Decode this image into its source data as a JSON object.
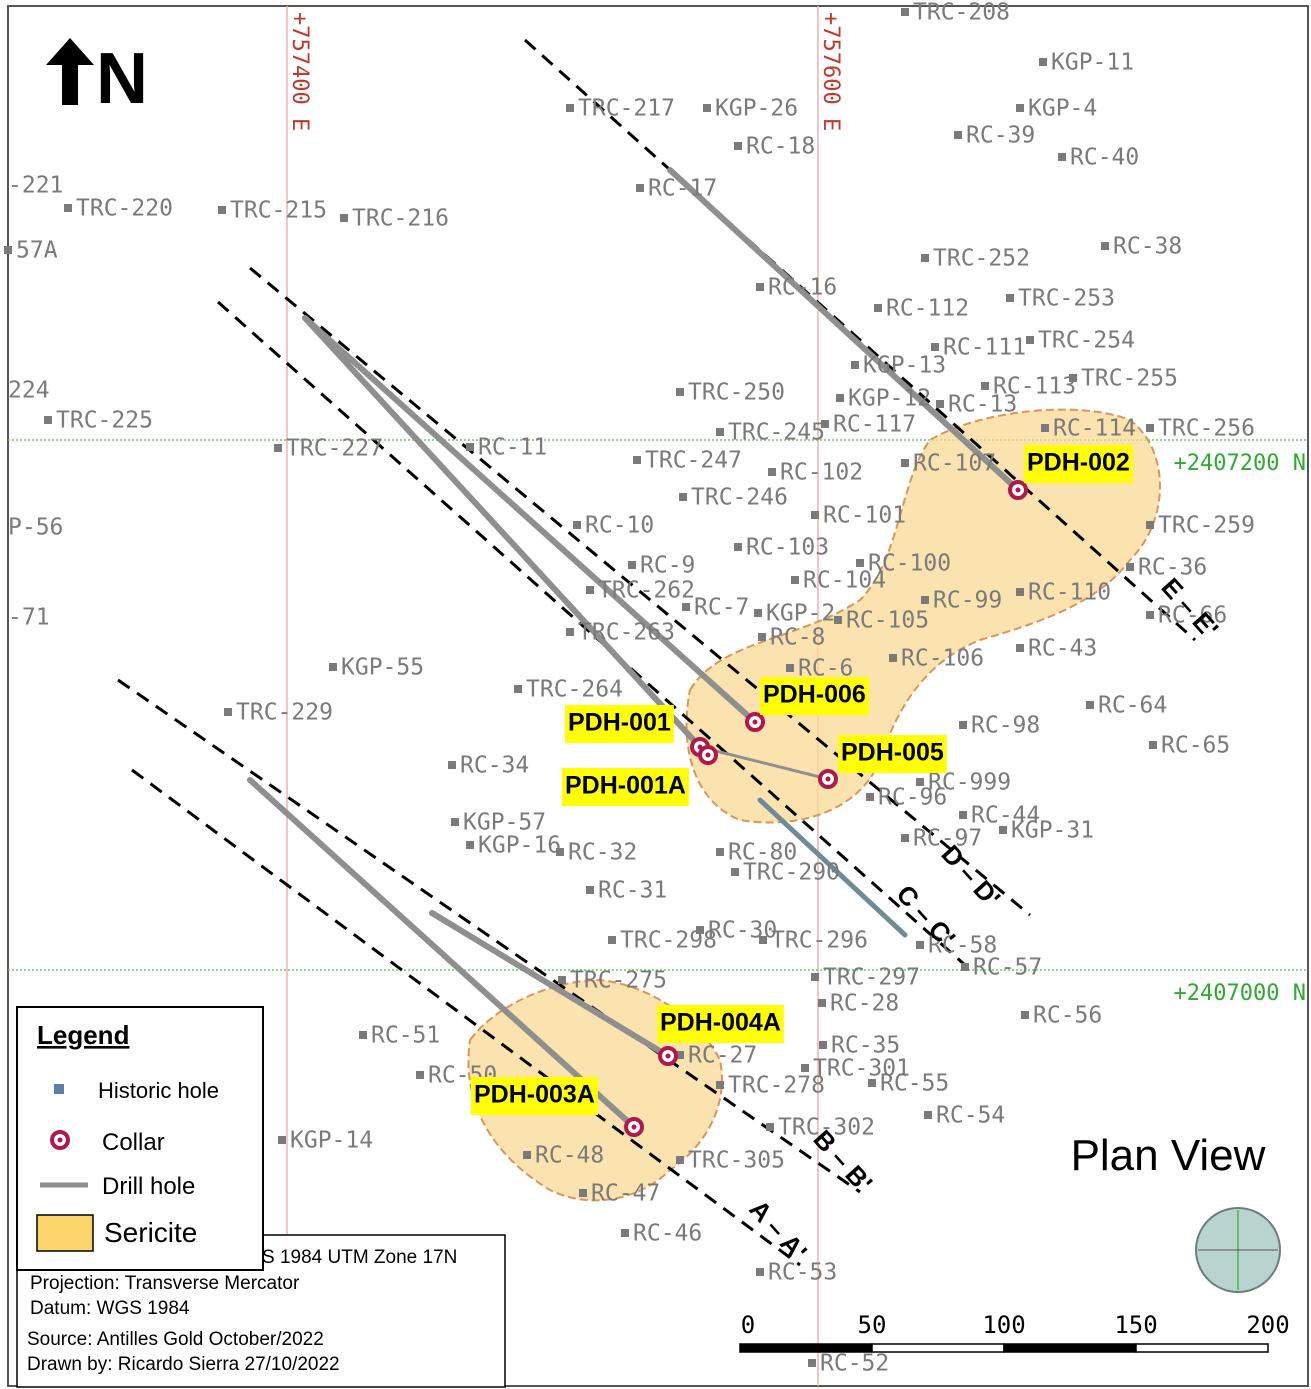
{
  "map": {
    "north_label": "N",
    "title": "Plan View",
    "grid_labels": [
      "+757400 E",
      "+757600 E",
      "+2407200 N",
      "+2407000 N"
    ],
    "drill_holes": [
      "PDH-002",
      "PDH-006",
      "PDH-001",
      "PDH-005",
      "PDH-001A",
      "PDH-004A",
      "PDH-003A"
    ],
    "sections": [
      "E – E'",
      "D – D'",
      "C – C'",
      "B – B'",
      "A – A'"
    ],
    "historic_holes": [
      "TRC-208",
      "KGP-11",
      "TRC-217",
      "KGP-26",
      "KGP-4",
      "RC-18",
      "RC-39",
      "RC-40",
      "RC-17",
      "-221",
      "TRC-220",
      "TRC-215",
      "TRC-216",
      "57A",
      "TRC-252",
      "RC-38",
      "RC-16",
      "RC-112",
      "TRC-253",
      "TRC-254",
      "RC-111",
      "KGP-13",
      "TRC-255",
      "RC-113",
      "224",
      "TRC-225",
      "TRC-227",
      "RC-11",
      "TRC-250",
      "KGP-12",
      "TRC-245",
      "RC-117",
      "RC-13",
      "RC-114",
      "TRC-256",
      "TRC-247",
      "RC-102",
      "RC-107",
      "TRC-246",
      "RC-101",
      "RC-10",
      "P-56",
      "TRC-259",
      "RC-103",
      "RC-100",
      "RC-9",
      "TRC-262",
      "RC-104",
      "RC-99",
      "RC-110",
      "RC-36",
      "RC-7",
      "KGP-2",
      "RC-105",
      "-71",
      "RC-66",
      "TRC-263",
      "RC-8",
      "RC-106",
      "RC-43",
      "KGP-55",
      "RC-6",
      "TRC-264",
      "TRC-229",
      "RC-64",
      "RC-98",
      "RC-65",
      "RC-34",
      "RC-999",
      "RC-96",
      "KGP-57",
      "RC-97",
      "RC-44",
      "KGP-31",
      "KGP-16",
      "RC-32",
      "RC-80",
      "TRC-290",
      "RC-31",
      "RC-30",
      "TRC-298",
      "TRC-296",
      "RC-58",
      "RC-57",
      "TRC-297",
      "TRC-275",
      "RC-28",
      "RC-56",
      "RC-51",
      "RC-35",
      "RC-27",
      "TRC-301",
      "RC-55",
      "TRC-278",
      "RC-50",
      "RC-54",
      "TRC-302",
      "KGP-14",
      "RC-48",
      "TRC-305",
      "RC-47",
      "RC-46",
      "RC-53",
      "RC-52"
    ],
    "scale_ticks": [
      0,
      50,
      100,
      150,
      200
    ]
  },
  "legend": {
    "title": "Legend",
    "items": [
      "Historic hole",
      "Collar",
      "Drill hole",
      "Sericite"
    ]
  },
  "info": [
    "S 1984 UTM Zone 17N",
    "Projection: Transverse Mercator",
    "Datum: WGS 1984",
    "Source: Antilles Gold October/2022",
    "Drawn by: Ricardo Sierra 27/10/2022"
  ]
}
